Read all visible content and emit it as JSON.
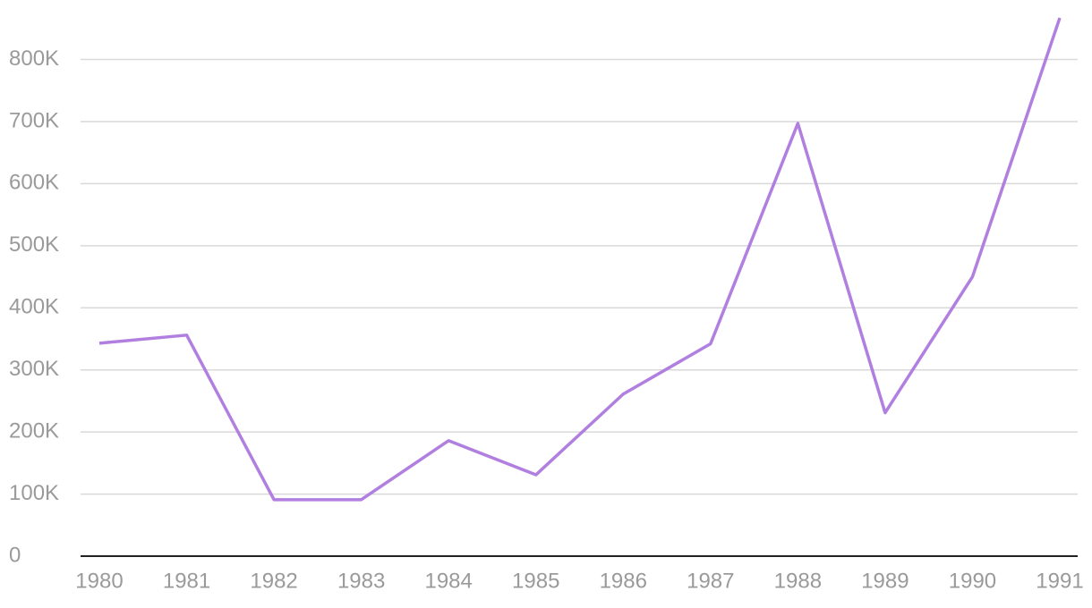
{
  "chart_data": {
    "type": "line",
    "x": [
      1980,
      1981,
      1982,
      1983,
      1984,
      1985,
      1986,
      1987,
      1988,
      1989,
      1990,
      1991
    ],
    "series": [
      {
        "color": "#b07fe0",
        "values": [
          343000,
          356000,
          91000,
          91000,
          186000,
          131000,
          261000,
          342000,
          697000,
          231000,
          450000,
          867000
        ]
      }
    ],
    "xlim": [
      1980,
      1991
    ],
    "xticks": [
      1980,
      1981,
      1982,
      1983,
      1984,
      1985,
      1986,
      1987,
      1988,
      1989,
      1990,
      1991
    ],
    "ylim": [
      0,
      867000
    ],
    "yticks": [
      0,
      {
        "value": 100000,
        "label": "100K"
      },
      {
        "value": 200000,
        "label": "200K"
      },
      {
        "value": 300000,
        "label": "300K"
      },
      {
        "value": 400000,
        "label": "400K"
      },
      {
        "value": 500000,
        "label": "500K"
      },
      {
        "value": 600000,
        "label": "600K"
      },
      {
        "value": 700000,
        "label": "700K"
      },
      {
        "value": 800000,
        "label": "800K"
      }
    ],
    "grid": true
  }
}
